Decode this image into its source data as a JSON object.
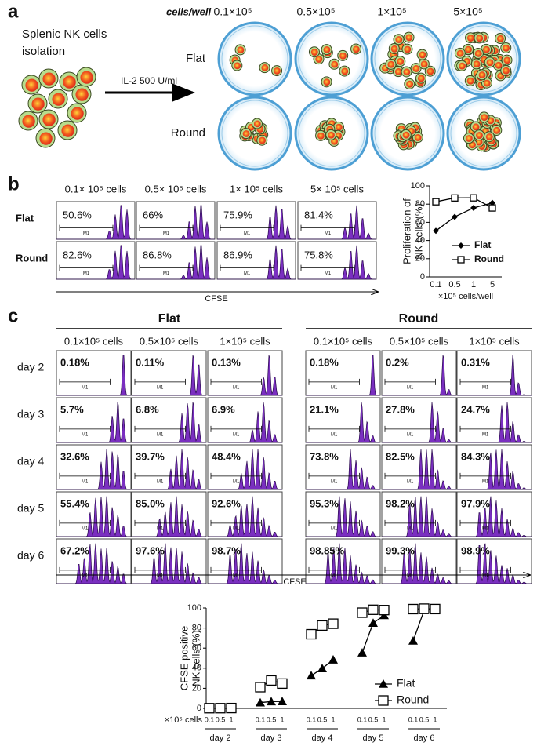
{
  "panel_a": {
    "label": "a",
    "source_text": [
      "Splenic NK cells",
      "isolation"
    ],
    "treatment": "IL-2 500 U/ml",
    "column_title": "cells/well",
    "columns": [
      "0.1×10⁵",
      "0.5×10⁵",
      "1×10⁵",
      "5×10⁵"
    ],
    "rows": [
      "Flat",
      "Round"
    ]
  },
  "panel_b": {
    "label": "b",
    "columns": [
      "0.1× 10⁵ cells",
      "0.5× 10⁵ cells",
      "1× 10⁵ cells",
      "5× 10⁵ cells"
    ],
    "rows": [
      {
        "name": "Flat",
        "cells": [
          "50.6%",
          "66%",
          "75.9%",
          "81.4%"
        ]
      },
      {
        "name": "Round",
        "cells": [
          "82.6%",
          "86.8%",
          "86.9%",
          "75.8%"
        ]
      }
    ],
    "gate": "M1",
    "axis_label": "CFSE"
  },
  "panel_c": {
    "label": "c",
    "row_labels": [
      "day 2",
      "day 3",
      "day 4",
      "day 5",
      "day 6"
    ],
    "groups": [
      {
        "name": "Flat",
        "columns": [
          "0.1×10⁵ cells",
          "0.5×10⁵ cells",
          "1×10⁵ cells"
        ],
        "cells": [
          [
            "0.18%",
            "0.11%",
            "0.13%"
          ],
          [
            "5.7%",
            "6.8%",
            "6.9%"
          ],
          [
            "32.6%",
            "39.7%",
            "48.4%"
          ],
          [
            "55.4%",
            "85.0%",
            "92.6%"
          ],
          [
            "67.2%",
            "97.6%",
            "98.7%"
          ]
        ]
      },
      {
        "name": "Round",
        "columns": [
          "0.1×10⁵ cells",
          "0.5×10⁵ cells",
          "1×10⁵ cells"
        ],
        "cells": [
          [
            "0.18%",
            "0.2%",
            "0.31%"
          ],
          [
            "21.1%",
            "27.8%",
            "24.7%"
          ],
          [
            "73.8%",
            "82.5%",
            "84.3%"
          ],
          [
            "95.3%",
            "98.2%",
            "97.9%"
          ],
          [
            "98.85%",
            "99.3%",
            "98.9%"
          ]
        ]
      }
    ],
    "gate": "M1",
    "axis_label": "CFSE"
  },
  "chart_data": [
    {
      "type": "line",
      "ylabel": [
        "Proliferation of",
        "NK cells (%)"
      ],
      "xlabel": "×10⁵ cells/well",
      "categories": [
        "0.1",
        "0.5",
        "1",
        "5"
      ],
      "series": [
        {
          "name": "Flat",
          "color": "#000000",
          "marker": "diamond",
          "values": [
            50.6,
            66,
            75.9,
            81.4
          ]
        },
        {
          "name": "Round",
          "color": "#000000",
          "marker": "open-square",
          "values": [
            82.6,
            86.8,
            86.9,
            75.8
          ]
        }
      ],
      "ylim": [
        0,
        100
      ],
      "yticks": [
        0,
        20,
        40,
        60,
        80,
        100
      ]
    },
    {
      "type": "line",
      "ylabel": [
        "CFSE positive",
        "NK cells (%)"
      ],
      "xlabel": "×10⁵ cells",
      "categories": [
        "0.1",
        "0.5",
        "1",
        "0.1",
        "0.5",
        "1",
        "0.1",
        "0.5",
        "1",
        "0.1",
        "0.5",
        "1",
        "0.1",
        "0.5",
        "1"
      ],
      "groups": [
        "day 2",
        "day 3",
        "day 4",
        "day 5",
        "day 6"
      ],
      "series": [
        {
          "name": "Flat",
          "color": "#000000",
          "marker": "triangle",
          "values": [
            0.18,
            0.11,
            0.13,
            5.7,
            6.8,
            6.9,
            32.6,
            39.7,
            48.4,
            55.4,
            85.0,
            92.6,
            67.2,
            97.6,
            98.7
          ]
        },
        {
          "name": "Round",
          "color": "#000000",
          "marker": "open-square",
          "values": [
            0.18,
            0.2,
            0.31,
            21.1,
            27.8,
            24.7,
            73.8,
            82.5,
            84.3,
            95.3,
            98.2,
            97.9,
            98.85,
            99.3,
            98.9
          ]
        }
      ],
      "ylim": [
        0,
        100
      ],
      "yticks": [
        0,
        20,
        40,
        60,
        80,
        100
      ]
    }
  ]
}
